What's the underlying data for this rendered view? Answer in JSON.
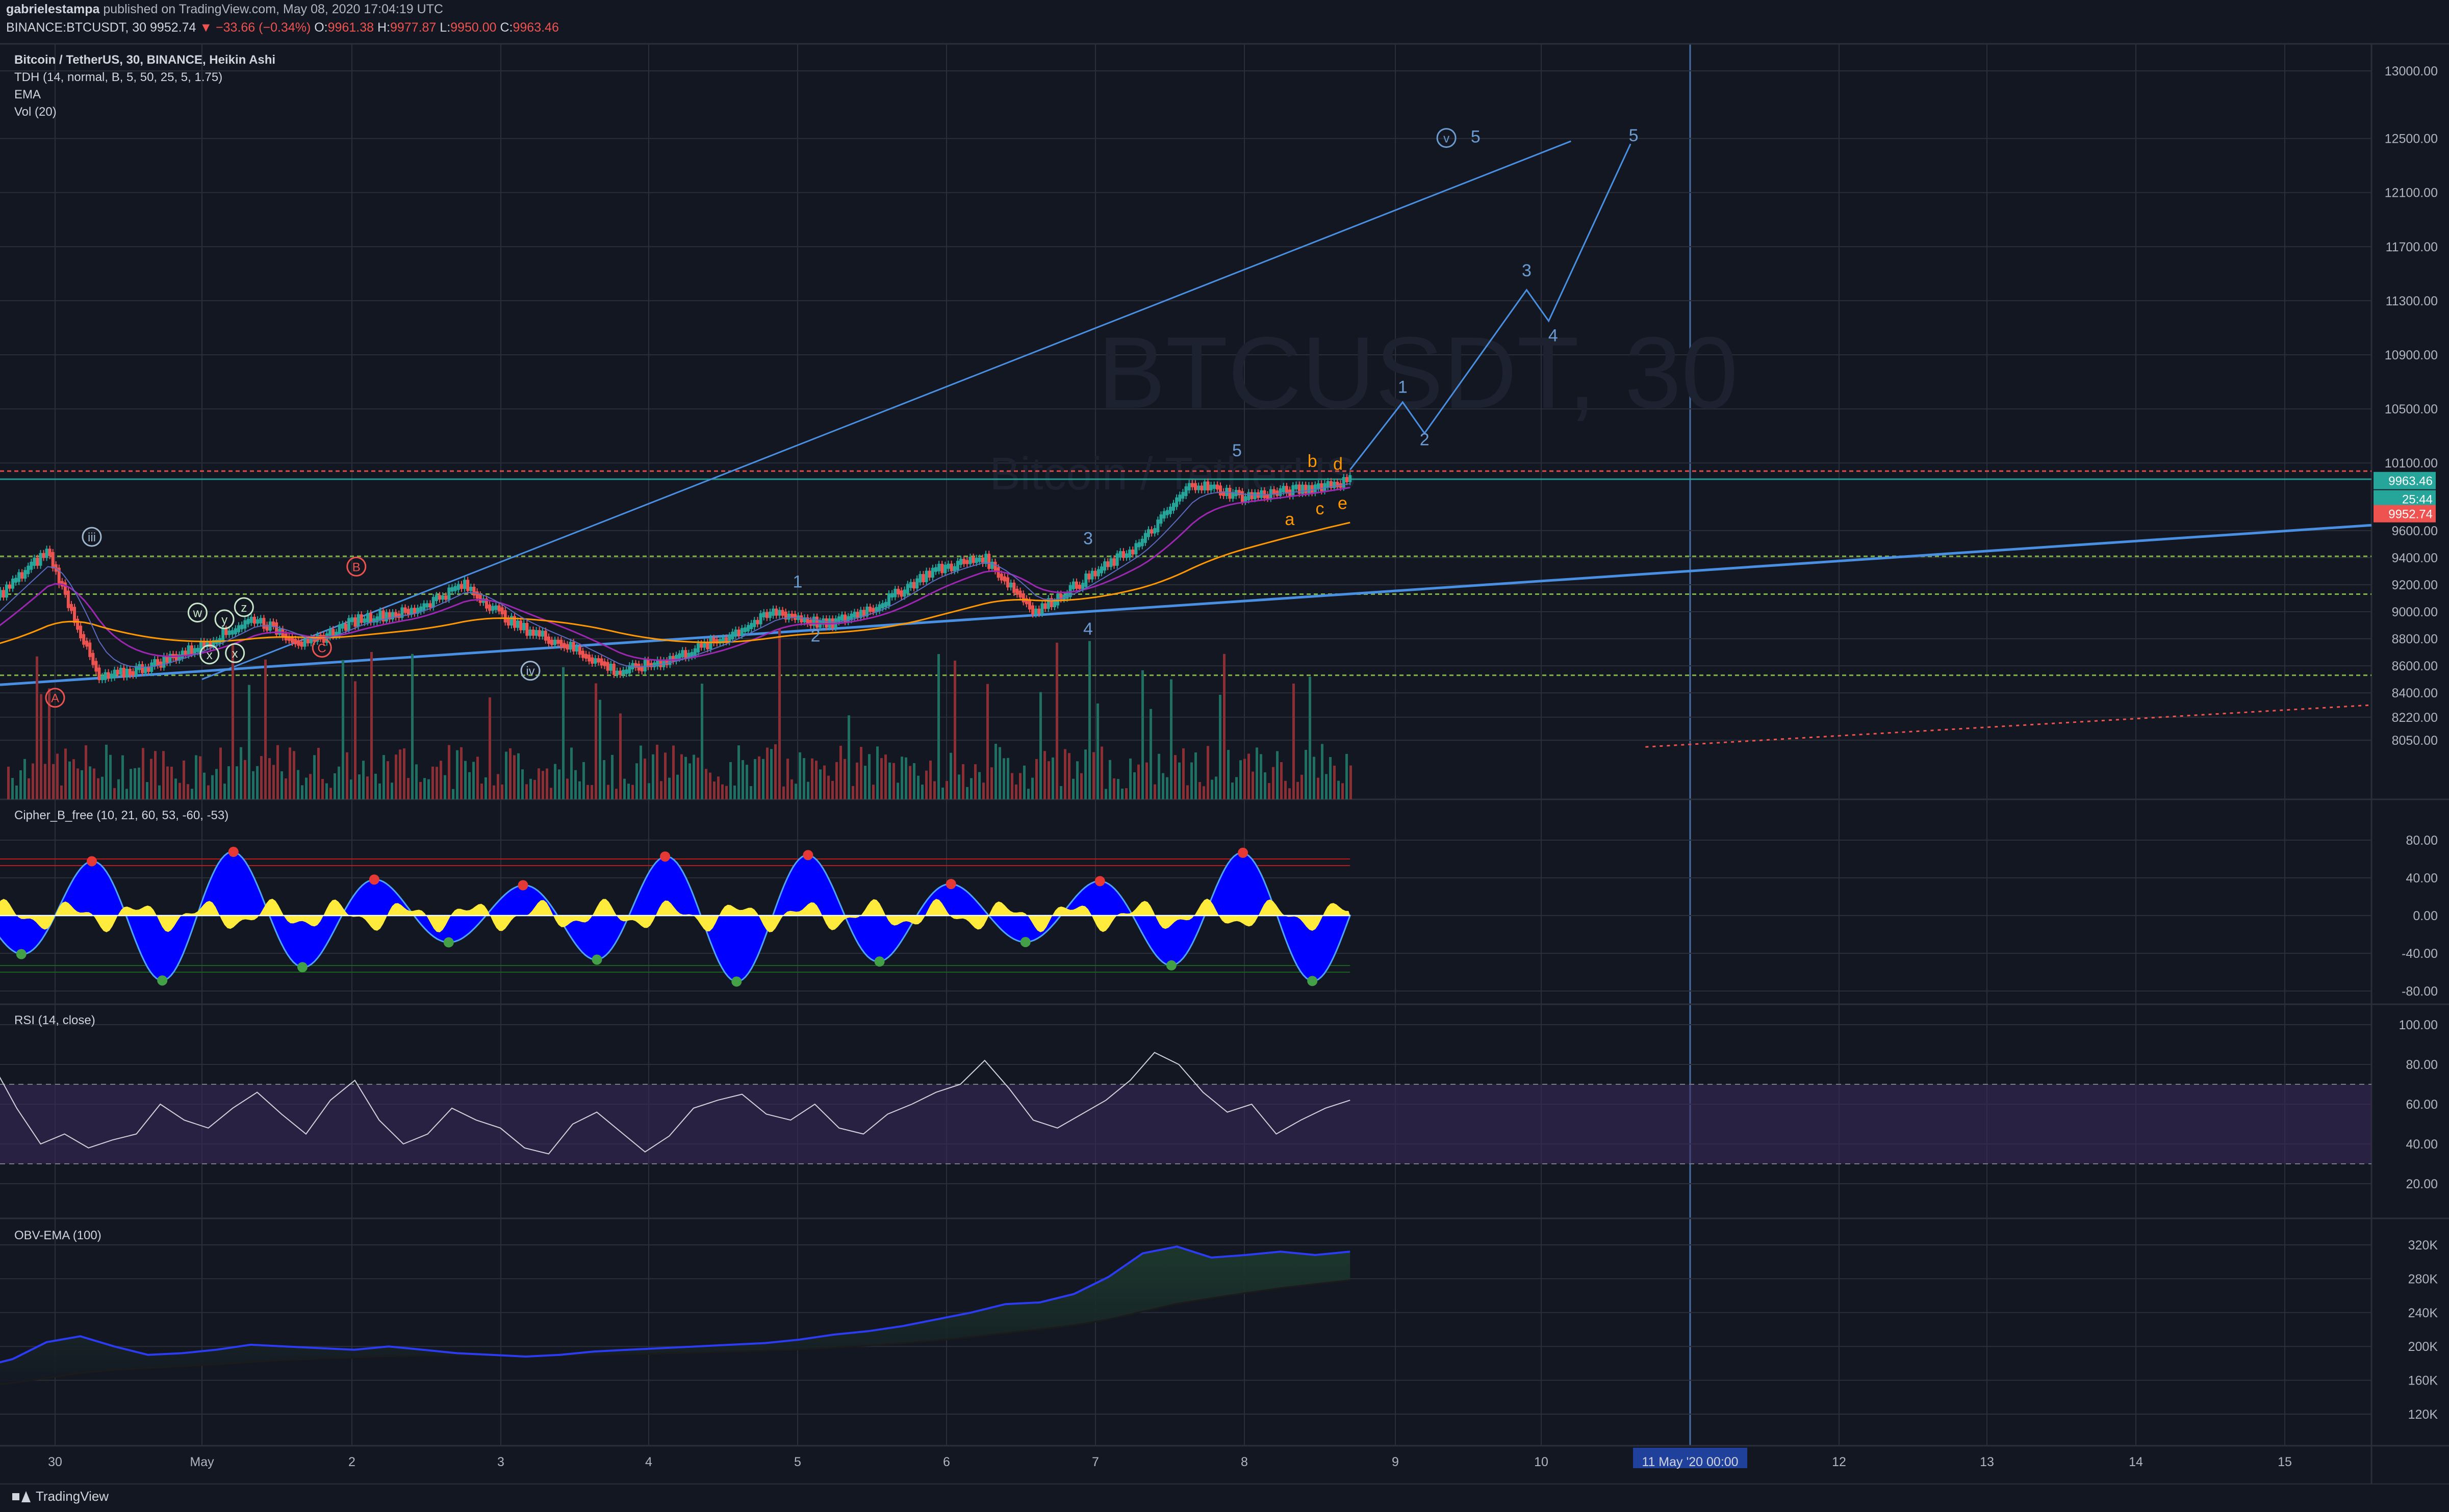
{
  "header": {
    "author": "gabrielestampa",
    "published": " published on TradingView.com, May 08, 2020 17:04:19 UTC",
    "symbol": "BINANCE:BTCUSDT, 30",
    "last": "9952.74",
    "change": "▼ −33.66 (−0.34%)",
    "o_label": "O:",
    "o": "9961.38",
    "h_label": "H:",
    "h": "9977.87",
    "l_label": "L:",
    "l": "9950.00",
    "c_label": "C:",
    "c": "9963.46"
  },
  "legend": {
    "title": "Bitcoin / TetherUS, 30, BINANCE, Heikin Ashi",
    "tdh": "TDH (14, normal, B, 5, 50, 25, 5, 1.75)",
    "ema": "EMA",
    "vol": "Vol (20)"
  },
  "watermark": {
    "symbol": "BTCUSDT, 30",
    "name": "Bitcoin / TetherUS"
  },
  "indicators": {
    "cipher": "Cipher_B_free (10, 21, 60, 53, -60, -53)",
    "rsi": "RSI (14, close)",
    "obv": "OBV-EMA (100)"
  },
  "footer": {
    "brand": "TradingView"
  },
  "colors": {
    "background": "#131722",
    "grid": "#2a2e39",
    "axis_text": "#b2b5be",
    "up": "#26a69a",
    "down": "#ef5350",
    "wave": "#6b9bd1",
    "cipher_wave": "#0000ff",
    "cipher_mf": "#ffeb3b",
    "rsi_band": "#3c2a5c",
    "obv": "#2c3cf2",
    "badge_last": "#ef5350",
    "badge_close": "#26a69a",
    "badge_timer": "#26a69a"
  },
  "chart_data": [
    {
      "type": "candlestick",
      "title": "Bitcoin / TetherUS, 30, BINANCE, Heikin Ashi",
      "x_ticks": [
        "30",
        "May",
        "2",
        "3",
        "4",
        "5",
        "6",
        "7",
        "8",
        "9",
        "10",
        "11 May '20   00:00",
        "12",
        "13",
        "14",
        "15"
      ],
      "y_ticks": [
        "13000.00",
        "12500.00",
        "12100.00",
        "11700.00",
        "11300.00",
        "10900.00",
        "10500.00",
        "10100.00",
        "9600.00",
        "9400.00",
        "9200.00",
        "9000.00",
        "8800.00",
        "8600.00",
        "8400.00",
        "8220.00",
        "8050.00"
      ],
      "ylim": [
        8000,
        13200
      ],
      "price_path": {
        "dates_apr30_to_may8": [
          "Apr 30",
          "Apr 30",
          "Apr 30",
          "Apr 30",
          "May 1",
          "May 1",
          "May 1",
          "May 2",
          "May 2",
          "May 3",
          "May 3",
          "May 3",
          "May 4",
          "May 4",
          "May 4",
          "May 5",
          "May 5",
          "May 6",
          "May 6",
          "May 6",
          "May 7",
          "May 7",
          "May 7",
          "May 7",
          "May 8",
          "May 8",
          "May 8",
          "May 8"
        ],
        "price": [
          8700,
          9100,
          9450,
          8500,
          8600,
          8750,
          8950,
          8750,
          8950,
          9000,
          9200,
          8900,
          8750,
          8550,
          8650,
          8800,
          9000,
          8900,
          9050,
          9300,
          9400,
          9000,
          9250,
          9500,
          9950,
          9850,
          9900,
          9970
        ]
      },
      "last_price": "9952.74",
      "close_label": "9963.46",
      "timer_label": "25:44",
      "horizontal_levels": [
        10040,
        9980,
        9410,
        9130,
        8530
      ],
      "wave_labels_primary": [
        "iii",
        "iv",
        "v",
        "5"
      ],
      "wave_labels_minor": [
        "1",
        "2",
        "3",
        "4",
        "5"
      ],
      "wave_labels_correction": [
        "A",
        "B",
        "C",
        "a",
        "b",
        "c",
        "d",
        "e"
      ],
      "wave_labels_wxy": [
        "w",
        "x",
        "y",
        "x",
        "z"
      ],
      "projection_labels": [
        "1",
        "2",
        "3",
        "4",
        "5"
      ],
      "projection_path": [
        10050,
        10550,
        10320,
        11380,
        11150,
        12460
      ]
    },
    {
      "type": "area",
      "title": "Cipher_B_free (10, 21, 60, 53, -60, -53)",
      "y_ticks": [
        "80.00",
        "40.00",
        "0.00",
        "-40.00",
        "-80.00"
      ],
      "ylim": [
        -90,
        95
      ],
      "reference_levels": [
        60,
        53,
        -53,
        -60
      ]
    },
    {
      "type": "line",
      "title": "RSI (14, close)",
      "y_ticks": [
        "100.00",
        "80.00",
        "60.00",
        "40.00",
        "20.00"
      ],
      "ylim": [
        12,
        105
      ],
      "bands": [
        70,
        30
      ],
      "values": [
        92,
        85,
        80,
        58,
        40,
        45,
        38,
        42,
        45,
        60,
        52,
        48,
        58,
        66,
        55,
        45,
        62,
        72,
        52,
        40,
        45,
        58,
        52,
        48,
        38,
        35,
        50,
        56,
        46,
        36,
        44,
        58,
        62,
        65,
        55,
        52,
        60,
        48,
        45,
        55,
        60,
        66,
        70,
        82,
        68,
        52,
        48,
        55,
        62,
        72,
        86,
        80,
        66,
        56,
        60,
        45,
        52,
        58,
        62
      ]
    },
    {
      "type": "line",
      "title": "OBV-EMA (100)",
      "y_ticks": [
        "320K",
        "280K",
        "240K",
        "200K",
        "160K",
        "120K"
      ],
      "ylim": [
        100,
        340
      ],
      "values": [
        150,
        175,
        185,
        205,
        212,
        200,
        190,
        192,
        196,
        202,
        200,
        198,
        196,
        200,
        196,
        192,
        190,
        188,
        190,
        194,
        196,
        198,
        200,
        202,
        204,
        208,
        214,
        218,
        224,
        232,
        240,
        250,
        252,
        262,
        282,
        310,
        318,
        305,
        308,
        312,
        308,
        312
      ]
    }
  ]
}
